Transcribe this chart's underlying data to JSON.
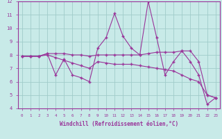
{
  "xlabel": "Windchill (Refroidissement éolien,°C)",
  "xlim_min": -0.5,
  "xlim_max": 23.5,
  "ylim_min": 4,
  "ylim_max": 12,
  "yticks": [
    4,
    5,
    6,
    7,
    8,
    9,
    10,
    11,
    12
  ],
  "xticks": [
    0,
    1,
    2,
    3,
    4,
    5,
    6,
    7,
    8,
    9,
    10,
    11,
    12,
    13,
    14,
    15,
    16,
    17,
    18,
    19,
    20,
    21,
    22,
    23
  ],
  "bg_color": "#c8eae8",
  "grid_color": "#a0ccca",
  "line_color": "#993399",
  "s1y": [
    7.9,
    7.9,
    7.9,
    8.1,
    6.5,
    7.7,
    6.5,
    6.3,
    6.0,
    8.5,
    9.3,
    11.1,
    9.4,
    8.5,
    8.0,
    12.0,
    9.3,
    6.5,
    7.5,
    8.3,
    7.5,
    6.5,
    4.3,
    4.8
  ],
  "s2y": [
    7.9,
    7.9,
    7.9,
    8.1,
    8.1,
    8.1,
    8.0,
    8.0,
    7.9,
    8.0,
    8.0,
    8.0,
    8.0,
    8.0,
    8.0,
    8.1,
    8.2,
    8.2,
    8.2,
    8.3,
    8.3,
    7.5,
    5.0,
    4.8
  ],
  "s3y": [
    7.9,
    7.9,
    7.9,
    8.0,
    7.8,
    7.6,
    7.4,
    7.2,
    7.0,
    7.5,
    7.4,
    7.3,
    7.3,
    7.3,
    7.2,
    7.1,
    7.0,
    6.9,
    6.8,
    6.5,
    6.2,
    6.0,
    5.0,
    4.8
  ]
}
